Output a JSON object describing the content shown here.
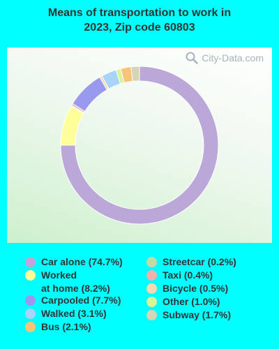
{
  "title": {
    "line1": "Means of transportation to work in",
    "line2": "2023, Zip code 60803"
  },
  "watermark": {
    "text": "City-Data.com",
    "icon": "magnifier-icon"
  },
  "colors": {
    "background": "#00ffff",
    "text": "#333333"
  },
  "chart_data": {
    "type": "pie",
    "donut": true,
    "categories": [
      "Car alone",
      "Worked at home",
      "Carpooled",
      "Walked",
      "Bus",
      "Streetcar",
      "Taxi",
      "Bicycle",
      "Other",
      "Subway"
    ],
    "values": [
      74.7,
      8.2,
      7.7,
      3.1,
      2.1,
      0.2,
      0.4,
      0.5,
      1.0,
      1.7
    ],
    "slice_order": [
      "Car alone",
      "Worked at home",
      "Streetcar",
      "Taxi",
      "Carpooled",
      "Bicycle",
      "Walked",
      "Other",
      "Bus",
      "Subway"
    ],
    "colors": {
      "Car alone": "#bba8d9",
      "Worked at home": "#ffff99",
      "Carpooled": "#9999ee",
      "Walked": "#aad4f7",
      "Bus": "#f9c47a",
      "Streetcar": "#c3d9a6",
      "Taxi": "#f0b0ac",
      "Bicycle": "#f8d8b0",
      "Other": "#d8f59a",
      "Subway": "#d8d4b6"
    },
    "legend_placement": "bottom"
  },
  "legend": {
    "left": [
      {
        "key": "Car alone",
        "label": "Car alone (74.7%)"
      },
      {
        "key": "Worked at home",
        "label": "Worked\nat home (8.2%)"
      },
      {
        "key": "Carpooled",
        "label": "Carpooled (7.7%)"
      },
      {
        "key": "Walked",
        "label": "Walked (3.1%)"
      },
      {
        "key": "Bus",
        "label": "Bus (2.1%)"
      }
    ],
    "right": [
      {
        "key": "Streetcar",
        "label": "Streetcar (0.2%)"
      },
      {
        "key": "Taxi",
        "label": "Taxi (0.4%)"
      },
      {
        "key": "Bicycle",
        "label": "Bicycle (0.5%)"
      },
      {
        "key": "Other",
        "label": "Other (1.0%)"
      },
      {
        "key": "Subway",
        "label": "Subway (1.7%)"
      }
    ]
  }
}
